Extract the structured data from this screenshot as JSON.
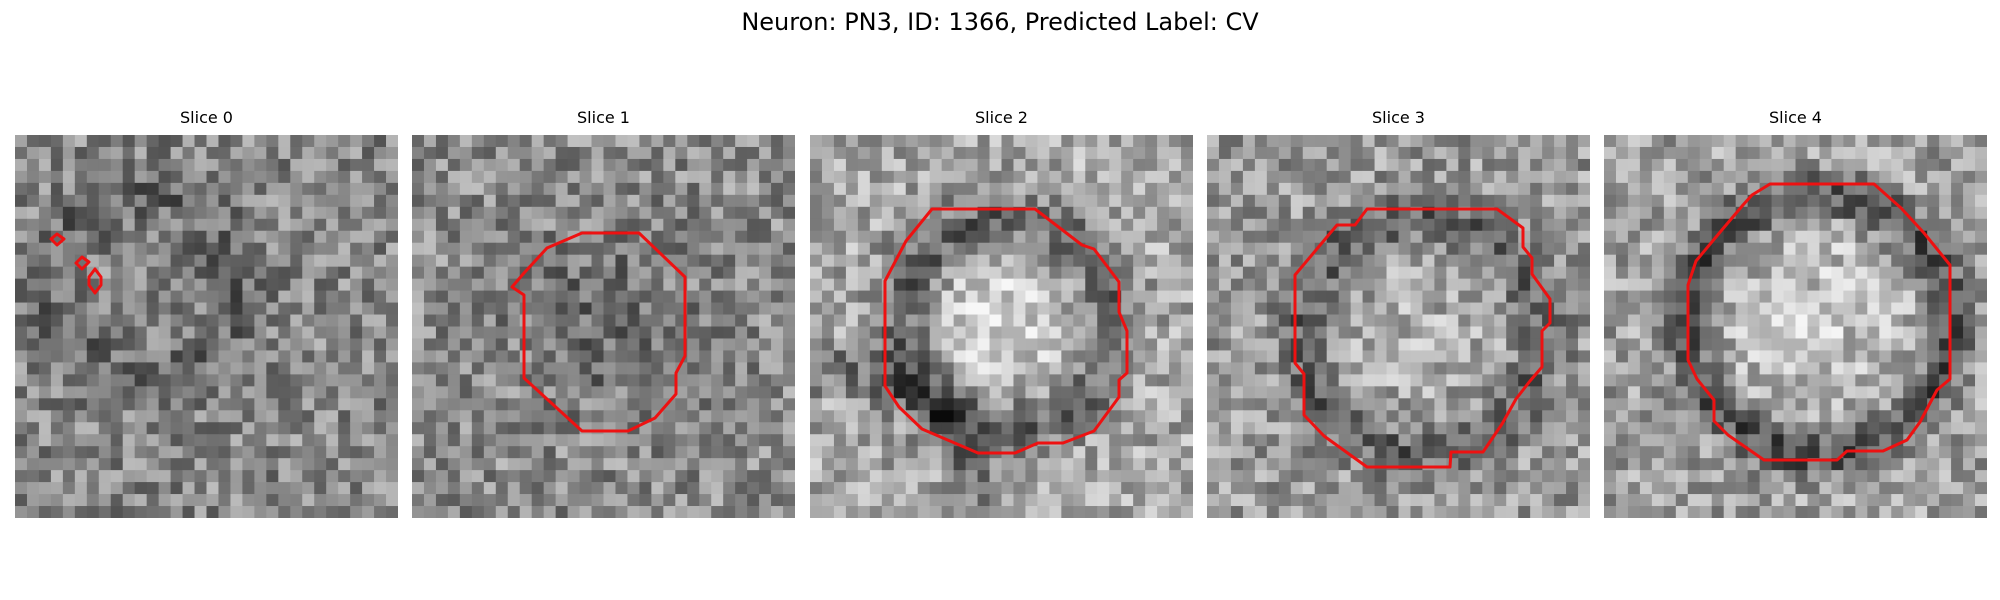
{
  "figure": {
    "title": "Neuron: PN3, ID: 1366, Predicted Label: CV"
  },
  "colors": {
    "contour": "#ee1111",
    "background": "#ffffff"
  },
  "slices": [
    {
      "title": "Slice 0",
      "brightness": 0.53,
      "variant": "faint"
    },
    {
      "title": "Slice 1",
      "brightness": 0.55,
      "variant": "noisy-dark-center"
    },
    {
      "title": "Slice 2",
      "brightness": 0.66,
      "variant": "ring-bright-center"
    },
    {
      "title": "Slice 3",
      "brightness": 0.6,
      "variant": "ring"
    },
    {
      "title": "Slice 4",
      "brightness": 0.62,
      "variant": "ring-dark-wall"
    }
  ]
}
